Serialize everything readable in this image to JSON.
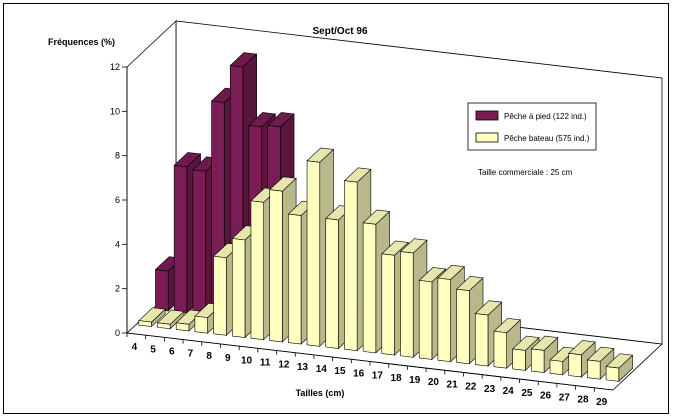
{
  "chart_data": {
    "type": "bar",
    "title": "Sept/Oct 96",
    "ylabel": "Fréquences (%)",
    "xlabel": "Tailles (cm)",
    "ylim": [
      0,
      12
    ],
    "yticks": [
      "0",
      "2",
      "4",
      "6",
      "8",
      "10",
      "12"
    ],
    "categories": [
      "4",
      "5",
      "6",
      "7",
      "8",
      "9",
      "10",
      "11",
      "12",
      "13",
      "14",
      "15",
      "16",
      "17",
      "18",
      "19",
      "20",
      "21",
      "22",
      "23",
      "24",
      "25",
      "26",
      "27",
      "28",
      "29"
    ],
    "series": [
      {
        "name": "Pêche à pied (122 ind.)",
        "color": "#7a1d55",
        "values": [
          1.8,
          6.6,
          6.5,
          9.7,
          11.4,
          8.8,
          8.9,
          0,
          0,
          0,
          0,
          0,
          0,
          0,
          0,
          0,
          0,
          0,
          0,
          0,
          0,
          0,
          0,
          0,
          0,
          0
        ]
      },
      {
        "name": "Pêche bateau (575 ind.)",
        "color": "#ffffc0",
        "values": [
          0.2,
          0.2,
          0.3,
          0.7,
          3.5,
          4.4,
          6.2,
          6.8,
          5.8,
          8.3,
          5.8,
          7.6,
          5.8,
          4.5,
          4.7,
          3.5,
          3.7,
          3.3,
          2.3,
          1.6,
          0.9,
          1.0,
          0.6,
          1.0,
          0.8,
          0.6
        ]
      }
    ],
    "annotation": "Taille commerciale : 25 cm",
    "legend_position": "right",
    "projection": "3d"
  }
}
